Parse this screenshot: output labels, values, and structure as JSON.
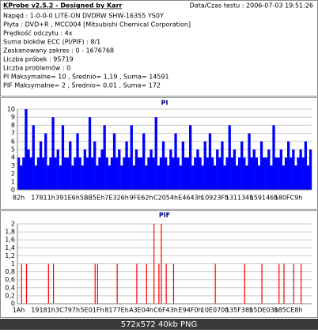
{
  "info": {
    "title": "KProbe v2.5.2 - Designed by Karr",
    "date": "Data/Czas testu : 2006-07-03 19:51:26",
    "lines": [
      "Napęd : 1-0-0-0 LITE-ON DVDRW SHW-16355  YS0Y",
      "Płyta : DVD+R , MCC004 [Mitsubishi Chemical Corporation]",
      "Prędkość odczytu : 4x",
      "Suma bloków ECC (PI/PIF) : 8/1",
      "Zeskanowany zakres : 0 - 1676768",
      "Liczba próbek : 95719",
      "Liczba problemów : 0",
      "PI Maksymalne= 10 , Średnio= 1,19 , Suma= 14591",
      "PIF Maksymalne= 2 , Średnio= 0,01 , Suma= 172"
    ]
  },
  "caption": "572x572 40kb PNG",
  "chart_data": [
    {
      "type": "bar",
      "title": "PI",
      "color": "#0000ff",
      "grid": true,
      "ylim": [
        0,
        10
      ],
      "yticks": [
        0,
        1,
        2,
        3,
        4,
        5,
        6,
        7,
        8,
        9,
        10
      ],
      "categories": [
        "82h",
        null,
        null,
        null,
        null,
        null,
        null,
        null,
        null,
        null,
        "17811h",
        null,
        null,
        null,
        null,
        null,
        null,
        null,
        null,
        null,
        "391E6h",
        null,
        null,
        null,
        null,
        null,
        null,
        null,
        null,
        null,
        "5BB5Eh",
        null,
        null,
        null,
        null,
        null,
        null,
        null,
        null,
        null,
        "7E326h",
        null,
        null,
        null,
        null,
        null,
        null,
        null,
        null,
        null,
        "9FE62h",
        null,
        null,
        null,
        null,
        null,
        null,
        null,
        null,
        null,
        "C2054h",
        null,
        null,
        null,
        null,
        null,
        null,
        null,
        null,
        null,
        "E4643h",
        null,
        null,
        null,
        null,
        null,
        null,
        null,
        null,
        null,
        "10923Fh",
        null,
        null,
        null,
        null,
        null,
        null,
        null,
        null,
        null,
        "131134h",
        null,
        null,
        null,
        null,
        null,
        null,
        null,
        null,
        null,
        "159146h",
        null,
        null,
        null,
        null,
        null,
        null,
        null,
        null,
        null,
        "180FC9h",
        null,
        null,
        null,
        null,
        null,
        null,
        null,
        null,
        null
      ],
      "values": [
        4,
        3,
        4,
        10,
        5,
        4,
        8,
        3,
        4,
        6,
        4,
        7,
        3,
        4,
        9,
        4,
        5,
        3,
        8,
        4,
        4,
        6,
        3,
        4,
        7,
        4,
        3,
        5,
        4,
        9,
        4,
        6,
        3,
        4,
        5,
        8,
        4,
        3,
        4,
        7,
        4,
        5,
        3,
        4,
        6,
        4,
        8,
        3,
        5,
        4,
        4,
        7,
        3,
        4,
        5,
        4,
        9,
        3,
        4,
        6,
        4,
        3,
        5,
        4,
        7,
        4,
        3,
        6,
        4,
        4,
        8,
        3,
        4,
        5,
        4,
        3,
        6,
        4,
        7,
        4,
        3,
        5,
        4,
        6,
        3,
        4,
        8,
        4,
        5,
        3,
        4,
        6,
        4,
        3,
        7,
        4,
        5,
        4,
        3,
        6,
        4,
        4,
        5,
        3,
        8,
        4,
        4,
        5,
        3,
        4,
        6,
        4,
        5,
        3,
        4,
        5,
        4,
        6,
        3,
        5
      ]
    },
    {
      "type": "bar",
      "title": "PIF",
      "color": "#ff0000",
      "grid": true,
      "ylim": [
        0,
        2
      ],
      "yticks": [
        0,
        {
          "value": 0.2,
          "label": "0,2"
        },
        {
          "value": 0.4,
          "label": "0,4"
        },
        {
          "value": 0.6,
          "label": "0,6"
        },
        {
          "value": 0.8,
          "label": "0,8"
        },
        1,
        {
          "value": 1.2,
          "label": "1,2"
        },
        {
          "value": 1.4,
          "label": "1,4"
        },
        {
          "value": 1.6,
          "label": "1,6"
        },
        {
          "value": 1.8,
          "label": "1,8"
        },
        2
      ],
      "categories": [
        "1Ah",
        null,
        null,
        null,
        null,
        null,
        null,
        null,
        null,
        null,
        "19181h",
        null,
        null,
        null,
        null,
        null,
        null,
        null,
        null,
        null,
        "3C797h",
        null,
        null,
        null,
        null,
        null,
        null,
        null,
        null,
        null,
        "5E01Fh",
        null,
        null,
        null,
        null,
        null,
        null,
        null,
        null,
        null,
        "8177Eh",
        null,
        null,
        null,
        null,
        null,
        null,
        null,
        null,
        null,
        "A3E04h",
        null,
        null,
        null,
        null,
        null,
        null,
        null,
        null,
        null,
        "C6F43h",
        null,
        null,
        null,
        null,
        null,
        null,
        null,
        null,
        null,
        "E94F0h",
        null,
        null,
        null,
        null,
        null,
        null,
        null,
        null,
        null,
        "10E070h",
        null,
        null,
        null,
        null,
        null,
        null,
        null,
        null,
        null,
        "135F38h",
        null,
        null,
        null,
        null,
        null,
        null,
        null,
        null,
        null,
        "15DE03h",
        null,
        null,
        null,
        null,
        null,
        null,
        null,
        null,
        null,
        "185CE8h",
        null,
        null,
        null,
        null,
        null,
        null,
        null,
        null,
        null
      ],
      "values": [
        0,
        1,
        0,
        1,
        0,
        0,
        0,
        0,
        0,
        0,
        0,
        0,
        1,
        0,
        1,
        0,
        0,
        0,
        0,
        0,
        0,
        0,
        0,
        0,
        0,
        0,
        0,
        0,
        0,
        0,
        0,
        1,
        1,
        0,
        0,
        0,
        0,
        0,
        0,
        0,
        1,
        0,
        0,
        0,
        0,
        0,
        0,
        0,
        1,
        0,
        0,
        0,
        1,
        0,
        0,
        2,
        0,
        1,
        2,
        0,
        1,
        0,
        0,
        1,
        0,
        0,
        0,
        0,
        0,
        0,
        0,
        0,
        0,
        0,
        0,
        0,
        0,
        0,
        0,
        0,
        1,
        0,
        0,
        0,
        0,
        0,
        0,
        0,
        0,
        0,
        0,
        0,
        1,
        0,
        0,
        0,
        0,
        0,
        0,
        1,
        0,
        0,
        0,
        0,
        0,
        0,
        1,
        0,
        1,
        0,
        0,
        0,
        1,
        0,
        0,
        1,
        0,
        0,
        0,
        0
      ]
    }
  ]
}
